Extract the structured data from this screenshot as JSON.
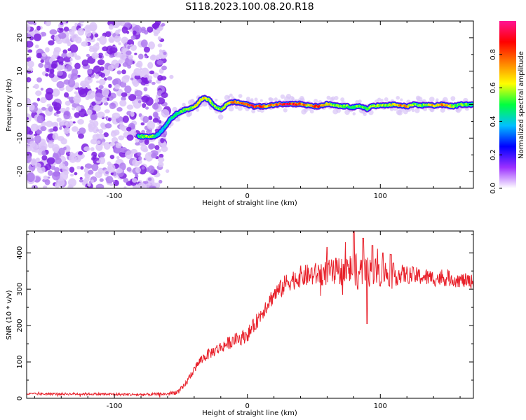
{
  "title": "S118.2023.100.08.20.R18",
  "colors": {
    "axis": "#000000",
    "snr_line": "#e8202a",
    "noise": "#8a2be2"
  },
  "chart_data": [
    {
      "type": "heatmap",
      "name": "spectrogram",
      "xlabel": "Height of straight line (km)",
      "ylabel": "Frequency (Hz)",
      "xlim": [
        -166,
        170
      ],
      "ylim": [
        -25,
        25
      ],
      "xticks": [
        -100,
        0,
        100
      ],
      "yticks": [
        -20,
        -10,
        0,
        10,
        20
      ],
      "grid": false,
      "noise_region": [
        -166,
        -62
      ],
      "ridge": {
        "x": [
          -82,
          -75,
          -70,
          -66,
          -62,
          -58,
          -54,
          -50,
          -46,
          -42,
          -38,
          -35,
          -32,
          -29,
          -26,
          -23,
          -20,
          -17,
          -14,
          -10,
          -6,
          -2,
          0,
          5,
          10,
          15,
          20,
          25,
          30,
          35,
          40,
          45,
          50,
          55,
          60,
          65,
          70,
          75,
          80,
          85,
          88,
          90,
          92,
          95,
          100,
          105,
          110,
          115,
          120,
          125,
          130,
          135,
          140,
          145,
          150,
          155,
          160,
          165,
          170
        ],
        "freq": [
          -9.5,
          -9.5,
          -9.5,
          -8.5,
          -6.5,
          -4.5,
          -3.0,
          -2.0,
          -1.5,
          -1.0,
          0.0,
          1.5,
          2.0,
          1.5,
          0.0,
          -1.0,
          -1.5,
          -0.5,
          0.5,
          0.8,
          0.5,
          0.2,
          0.0,
          -0.5,
          -0.5,
          -0.5,
          0.0,
          0.2,
          0.3,
          0.2,
          0.2,
          -0.2,
          -0.5,
          -0.5,
          0.2,
          -0.2,
          -0.5,
          -0.5,
          -0.8,
          -0.5,
          -0.8,
          -1.5,
          -0.8,
          -0.3,
          -0.3,
          -0.2,
          0.0,
          -0.3,
          -0.5,
          0.0,
          -0.3,
          0.0,
          -0.3,
          0.0,
          -0.2,
          -0.5,
          0.0,
          0.0,
          0.0
        ],
        "amp": [
          0.55,
          0.6,
          0.55,
          0.45,
          0.4,
          0.45,
          0.5,
          0.55,
          0.6,
          0.65,
          0.7,
          0.75,
          0.7,
          0.65,
          0.6,
          0.55,
          0.6,
          0.65,
          0.7,
          0.75,
          0.8,
          0.85,
          0.9,
          0.9,
          0.85,
          0.75,
          0.8,
          0.9,
          0.95,
          0.9,
          0.85,
          0.7,
          0.8,
          0.85,
          0.7,
          0.6,
          0.55,
          0.6,
          0.55,
          0.6,
          0.55,
          0.5,
          0.55,
          0.6,
          0.65,
          0.6,
          0.7,
          0.75,
          0.8,
          0.6,
          0.55,
          0.6,
          0.7,
          0.75,
          0.8,
          0.6,
          0.55,
          0.6,
          0.5
        ]
      },
      "colorbar": {
        "label": "Normalized spectral amplitude",
        "range": [
          0,
          1
        ],
        "ticks": [
          "0.0",
          "0.2",
          "0.4",
          "0.6",
          "0.8"
        ],
        "colors": [
          "#ffffff",
          "#9b30ff",
          "#0000ff",
          "#00c0ff",
          "#00ff40",
          "#ffff00",
          "#ff8000",
          "#ff0000",
          "#ff1493"
        ]
      }
    },
    {
      "type": "line",
      "name": "snr",
      "xlabel": "Height of straight line (km)",
      "ylabel": "SNR (10 * v/v)",
      "xlim": [
        -166,
        170
      ],
      "ylim": [
        0,
        460
      ],
      "xticks": [
        -100,
        0,
        100
      ],
      "yticks": [
        0,
        100,
        200,
        300,
        400
      ],
      "grid": false,
      "series": [
        {
          "name": "SNR",
          "trend": {
            "x": [
              -166,
              -120,
              -80,
              -60,
              -52,
              -48,
              -44,
              -40,
              -35,
              -30,
              -25,
              -20,
              -15,
              -10,
              -5,
              0,
              5,
              10,
              15,
              20,
              25,
              30,
              40,
              50,
              60,
              70,
              80,
              90,
              100,
              110,
              120,
              130,
              140,
              150,
              160,
              170
            ],
            "y": [
              12,
              12,
              10,
              12,
              18,
              30,
              55,
              80,
              105,
              120,
              130,
              140,
              150,
              160,
              165,
              175,
              200,
              230,
              260,
              285,
              300,
              320,
              335,
              340,
              345,
              350,
              355,
              350,
              345,
              340,
              340,
              335,
              330,
              330,
              325,
              320
            ]
          },
          "noise": {
            "x": [
              -166,
              -60,
              -50,
              -30,
              0,
              20,
              40,
              60,
              80,
              100,
              120,
              170
            ],
            "amp": [
              3,
              4,
              8,
              15,
              20,
              25,
              30,
              35,
              45,
              40,
              25,
              20
            ]
          },
          "spikes": [
            {
              "x": 60,
              "y": 415
            },
            {
              "x": 80,
              "y": 460
            },
            {
              "x": 83,
              "y": 300
            },
            {
              "x": 87,
              "y": 440
            },
            {
              "x": 90,
              "y": 205
            },
            {
              "x": 94,
              "y": 420
            },
            {
              "x": 102,
              "y": 400
            },
            {
              "x": 108,
              "y": 395
            }
          ]
        }
      ]
    }
  ]
}
